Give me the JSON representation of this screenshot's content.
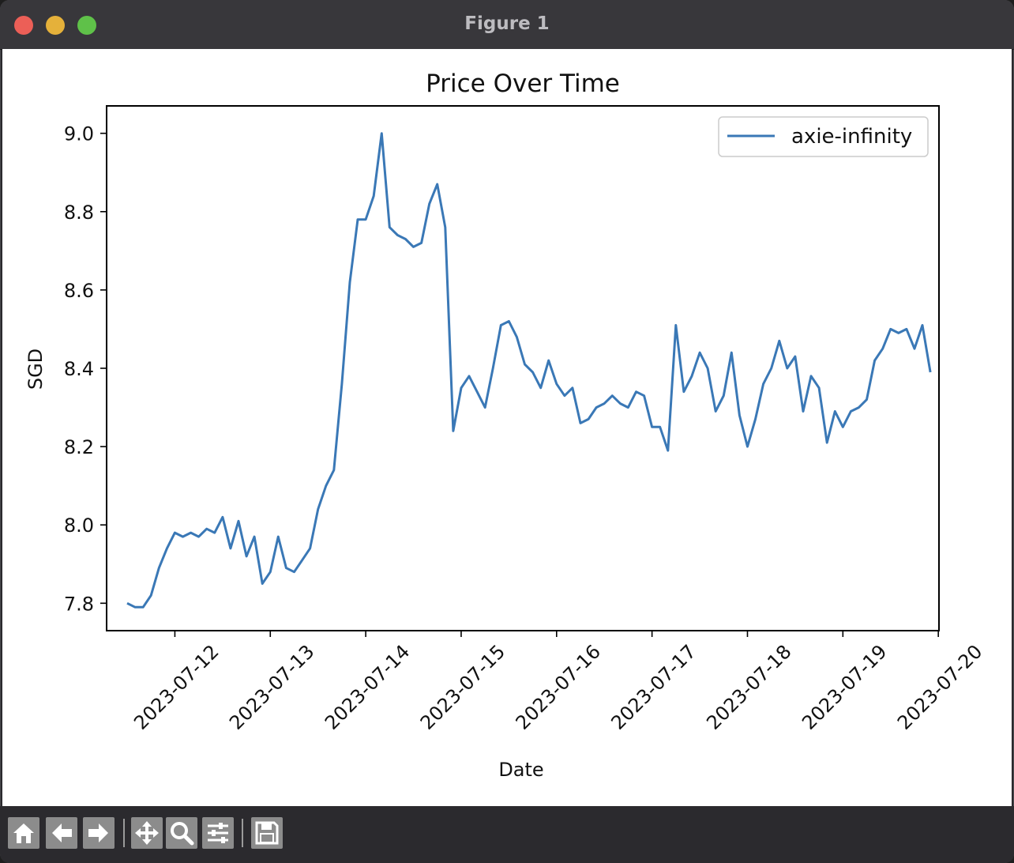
{
  "window": {
    "title": "Figure 1"
  },
  "toolbar": {
    "buttons": [
      "home-icon",
      "back-icon",
      "forward-icon",
      "pan-icon",
      "zoom-icon",
      "configure-subplots-icon",
      "save-icon"
    ]
  },
  "chart_data": {
    "type": "line",
    "title": "Price Over Time",
    "xlabel": "Date",
    "ylabel": "SGD",
    "xlim": [
      "2023-07-11T06:50",
      "2023-07-20T00:10"
    ],
    "ylim": [
      7.73,
      9.07
    ],
    "x_ticks": [
      "2023-07-12",
      "2023-07-13",
      "2023-07-14",
      "2023-07-15",
      "2023-07-16",
      "2023-07-17",
      "2023-07-18",
      "2023-07-19",
      "2023-07-20"
    ],
    "y_ticks": [
      "7.8",
      "8.0",
      "8.2",
      "8.4",
      "8.6",
      "8.8",
      "9.0"
    ],
    "legend_position": "upper right",
    "grid": false,
    "series": [
      {
        "name": "axie-infinity",
        "color": "#3a78b6",
        "points": [
          [
            "2023-07-11T12:00",
            7.8
          ],
          [
            "2023-07-11T14:00",
            7.79
          ],
          [
            "2023-07-11T16:00",
            7.79
          ],
          [
            "2023-07-11T18:00",
            7.82
          ],
          [
            "2023-07-11T20:00",
            7.89
          ],
          [
            "2023-07-11T22:00",
            7.94
          ],
          [
            "2023-07-12T00:00",
            7.98
          ],
          [
            "2023-07-12T02:00",
            7.97
          ],
          [
            "2023-07-12T04:00",
            7.98
          ],
          [
            "2023-07-12T06:00",
            7.97
          ],
          [
            "2023-07-12T08:00",
            7.99
          ],
          [
            "2023-07-12T10:00",
            7.98
          ],
          [
            "2023-07-12T12:00",
            8.02
          ],
          [
            "2023-07-12T14:00",
            7.94
          ],
          [
            "2023-07-12T16:00",
            8.01
          ],
          [
            "2023-07-12T18:00",
            7.92
          ],
          [
            "2023-07-12T20:00",
            7.97
          ],
          [
            "2023-07-12T22:00",
            7.85
          ],
          [
            "2023-07-13T00:00",
            7.88
          ],
          [
            "2023-07-13T02:00",
            7.97
          ],
          [
            "2023-07-13T04:00",
            7.89
          ],
          [
            "2023-07-13T06:00",
            7.88
          ],
          [
            "2023-07-13T08:00",
            7.91
          ],
          [
            "2023-07-13T10:00",
            7.94
          ],
          [
            "2023-07-13T12:00",
            8.04
          ],
          [
            "2023-07-13T14:00",
            8.1
          ],
          [
            "2023-07-13T16:00",
            8.14
          ],
          [
            "2023-07-13T18:00",
            8.36
          ],
          [
            "2023-07-13T20:00",
            8.62
          ],
          [
            "2023-07-13T22:00",
            8.78
          ],
          [
            "2023-07-14T00:00",
            8.78
          ],
          [
            "2023-07-14T02:00",
            8.84
          ],
          [
            "2023-07-14T04:00",
            9.0
          ],
          [
            "2023-07-14T06:00",
            8.76
          ],
          [
            "2023-07-14T08:00",
            8.74
          ],
          [
            "2023-07-14T10:00",
            8.73
          ],
          [
            "2023-07-14T12:00",
            8.71
          ],
          [
            "2023-07-14T14:00",
            8.72
          ],
          [
            "2023-07-14T16:00",
            8.82
          ],
          [
            "2023-07-14T18:00",
            8.87
          ],
          [
            "2023-07-14T20:00",
            8.76
          ],
          [
            "2023-07-14T22:00",
            8.24
          ],
          [
            "2023-07-15T00:00",
            8.35
          ],
          [
            "2023-07-15T02:00",
            8.38
          ],
          [
            "2023-07-15T04:00",
            8.34
          ],
          [
            "2023-07-15T06:00",
            8.3
          ],
          [
            "2023-07-15T08:00",
            8.4
          ],
          [
            "2023-07-15T10:00",
            8.51
          ],
          [
            "2023-07-15T12:00",
            8.52
          ],
          [
            "2023-07-15T14:00",
            8.48
          ],
          [
            "2023-07-15T16:00",
            8.41
          ],
          [
            "2023-07-15T18:00",
            8.39
          ],
          [
            "2023-07-15T20:00",
            8.35
          ],
          [
            "2023-07-15T22:00",
            8.42
          ],
          [
            "2023-07-16T00:00",
            8.36
          ],
          [
            "2023-07-16T02:00",
            8.33
          ],
          [
            "2023-07-16T04:00",
            8.35
          ],
          [
            "2023-07-16T06:00",
            8.26
          ],
          [
            "2023-07-16T08:00",
            8.27
          ],
          [
            "2023-07-16T10:00",
            8.3
          ],
          [
            "2023-07-16T12:00",
            8.31
          ],
          [
            "2023-07-16T14:00",
            8.33
          ],
          [
            "2023-07-16T16:00",
            8.31
          ],
          [
            "2023-07-16T18:00",
            8.3
          ],
          [
            "2023-07-16T20:00",
            8.34
          ],
          [
            "2023-07-16T22:00",
            8.33
          ],
          [
            "2023-07-17T00:00",
            8.25
          ],
          [
            "2023-07-17T02:00",
            8.25
          ],
          [
            "2023-07-17T04:00",
            8.19
          ],
          [
            "2023-07-17T06:00",
            8.51
          ],
          [
            "2023-07-17T08:00",
            8.34
          ],
          [
            "2023-07-17T10:00",
            8.38
          ],
          [
            "2023-07-17T12:00",
            8.44
          ],
          [
            "2023-07-17T14:00",
            8.4
          ],
          [
            "2023-07-17T16:00",
            8.29
          ],
          [
            "2023-07-17T18:00",
            8.33
          ],
          [
            "2023-07-17T20:00",
            8.44
          ],
          [
            "2023-07-17T22:00",
            8.28
          ],
          [
            "2023-07-18T00:00",
            8.2
          ],
          [
            "2023-07-18T02:00",
            8.27
          ],
          [
            "2023-07-18T04:00",
            8.36
          ],
          [
            "2023-07-18T06:00",
            8.4
          ],
          [
            "2023-07-18T08:00",
            8.47
          ],
          [
            "2023-07-18T10:00",
            8.4
          ],
          [
            "2023-07-18T12:00",
            8.43
          ],
          [
            "2023-07-18T14:00",
            8.29
          ],
          [
            "2023-07-18T16:00",
            8.38
          ],
          [
            "2023-07-18T18:00",
            8.35
          ],
          [
            "2023-07-18T20:00",
            8.21
          ],
          [
            "2023-07-18T22:00",
            8.29
          ],
          [
            "2023-07-19T00:00",
            8.25
          ],
          [
            "2023-07-19T02:00",
            8.29
          ],
          [
            "2023-07-19T04:00",
            8.3
          ],
          [
            "2023-07-19T06:00",
            8.32
          ],
          [
            "2023-07-19T08:00",
            8.42
          ],
          [
            "2023-07-19T10:00",
            8.45
          ],
          [
            "2023-07-19T12:00",
            8.5
          ],
          [
            "2023-07-19T14:00",
            8.49
          ],
          [
            "2023-07-19T16:00",
            8.5
          ],
          [
            "2023-07-19T18:00",
            8.45
          ],
          [
            "2023-07-19T20:00",
            8.51
          ],
          [
            "2023-07-19T22:00",
            8.39
          ]
        ]
      }
    ]
  }
}
